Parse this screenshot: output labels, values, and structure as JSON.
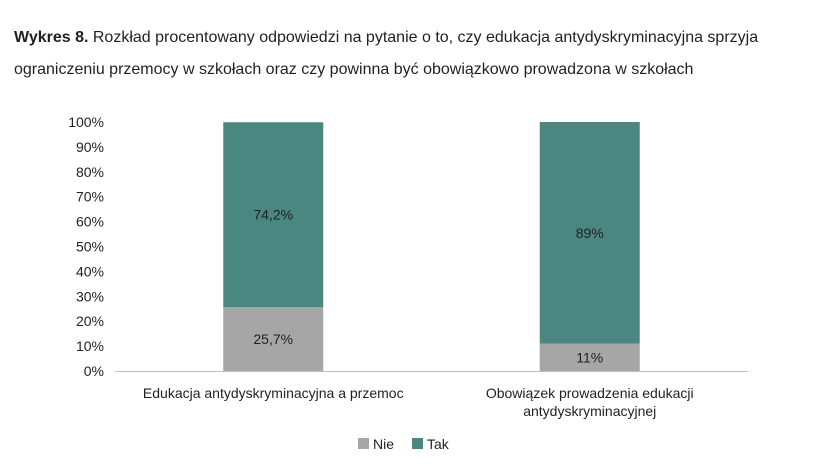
{
  "title": {
    "lead": "Wykres 8.",
    "text": "Rozkład procentowany odpowiedzi na pytanie o to, czy edukacja antydyskryminacyjna sprzyja ograniczeniu przemocy w szkołach oraz czy powinna być obowiązkowo prowadzona w szkołach"
  },
  "chart_data": {
    "type": "bar",
    "stacked": true,
    "title": "Wykres 8. Rozkład procentowany odpowiedzi na pytanie o to, czy edukacja antydyskryminacyjna sprzyja ograniczeniu przemocy w szkołach oraz czy powinna być obowiązkowo prowadzona w szkołach",
    "xlabel": "",
    "ylabel": "",
    "ylim": [
      0,
      100
    ],
    "yticks": [
      "0%",
      "10%",
      "20%",
      "30%",
      "40%",
      "50%",
      "60%",
      "70%",
      "80%",
      "90%",
      "100%"
    ],
    "categories": [
      [
        "Edukacja antydyskryminacyjna a przemoc"
      ],
      [
        "Obowiązek prowadzenia edukacji",
        "antydyskryminacyjnej"
      ]
    ],
    "series": [
      {
        "name": "Nie",
        "color": "#a6a6a6",
        "values": [
          25.7,
          11
        ],
        "labels": [
          "25,7%",
          "11%"
        ]
      },
      {
        "name": "Tak",
        "color": "#4a8780",
        "values": [
          74.2,
          89
        ],
        "labels": [
          "74,2%",
          "89%"
        ]
      }
    ],
    "legend": "bottom",
    "grid": false
  }
}
